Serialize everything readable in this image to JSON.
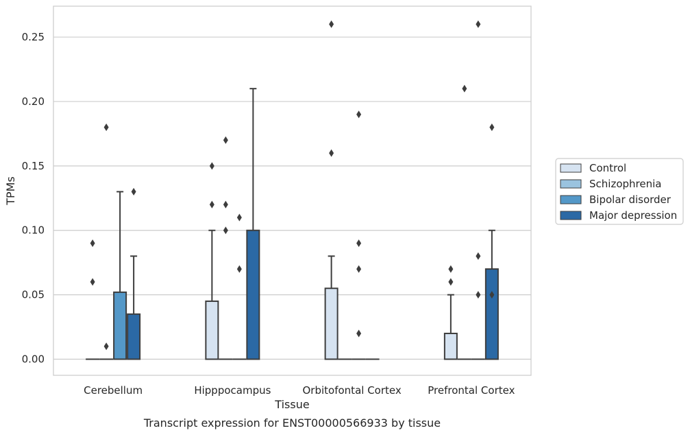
{
  "chart_data": {
    "type": "box",
    "xlabel": "Tissue",
    "ylabel": "TPMs",
    "caption": "Transcript expression for ENST00000566933 by tissue",
    "ylim": [
      -0.0125,
      0.274
    ],
    "yticks": [
      0.0,
      0.05,
      0.1,
      0.15,
      0.2,
      0.25
    ],
    "ytick_labels": [
      "0.00",
      "0.05",
      "0.10",
      "0.15",
      "0.20",
      "0.25"
    ],
    "grid": "horizontal",
    "legend_position": "right",
    "categories": [
      "Cerebellum",
      "Hipppocampus",
      "Orbitofontal Cortex",
      "Prefrontal Cortex"
    ],
    "series": [
      {
        "name": "Control",
        "color": "#d6e3f1",
        "boxes": [
          {
            "q1": 0,
            "median": 0,
            "q3": 0,
            "whisker_low": 0,
            "whisker_high": 0,
            "outliers": [
              0.06,
              0.09
            ]
          },
          {
            "q1": 0,
            "median": 0,
            "q3": 0.045,
            "whisker_low": 0,
            "whisker_high": 0.1,
            "outliers": [
              0.12,
              0.15
            ]
          },
          {
            "q1": 0,
            "median": 0,
            "q3": 0.055,
            "whisker_low": 0,
            "whisker_high": 0.08,
            "outliers": [
              0.16,
              0.26
            ]
          },
          {
            "q1": 0,
            "median": 0,
            "q3": 0.02,
            "whisker_low": 0,
            "whisker_high": 0.05,
            "outliers": [
              0.06,
              0.07
            ]
          }
        ]
      },
      {
        "name": "Schizophrenia",
        "color": "#9ac3df",
        "boxes": [
          {
            "q1": 0,
            "median": 0,
            "q3": 0,
            "whisker_low": 0,
            "whisker_high": 0,
            "outliers": [
              0.01,
              0.18
            ]
          },
          {
            "q1": 0,
            "median": 0,
            "q3": 0,
            "whisker_low": 0,
            "whisker_high": 0,
            "outliers": [
              0.1,
              0.12,
              0.17
            ]
          },
          {
            "q1": 0,
            "median": 0,
            "q3": 0,
            "whisker_low": 0,
            "whisker_high": 0,
            "outliers": []
          },
          {
            "q1": 0,
            "median": 0,
            "q3": 0,
            "whisker_low": 0,
            "whisker_high": 0,
            "outliers": [
              0.21
            ]
          }
        ]
      },
      {
        "name": "Bipolar disorder",
        "color": "#5498c8",
        "boxes": [
          {
            "q1": 0,
            "median": 0,
            "q3": 0.052,
            "whisker_low": 0,
            "whisker_high": 0.13,
            "outliers": []
          },
          {
            "q1": 0,
            "median": 0,
            "q3": 0,
            "whisker_low": 0,
            "whisker_high": 0,
            "outliers": [
              0.07,
              0.11
            ]
          },
          {
            "q1": 0,
            "median": 0,
            "q3": 0,
            "whisker_low": 0,
            "whisker_high": 0,
            "outliers": [
              0.02,
              0.07,
              0.09,
              0.19
            ]
          },
          {
            "q1": 0,
            "median": 0,
            "q3": 0,
            "whisker_low": 0,
            "whisker_high": 0,
            "outliers": [
              0.05,
              0.08,
              0.26
            ]
          }
        ]
      },
      {
        "name": "Major depression",
        "color": "#2b69a5",
        "boxes": [
          {
            "q1": 0,
            "median": 0,
            "q3": 0.035,
            "whisker_low": 0,
            "whisker_high": 0.08,
            "outliers": [
              0.13
            ]
          },
          {
            "q1": 0,
            "median": 0,
            "q3": 0.1,
            "whisker_low": 0,
            "whisker_high": 0.21,
            "outliers": []
          },
          {
            "q1": 0,
            "median": 0,
            "q3": 0,
            "whisker_low": 0,
            "whisker_high": 0,
            "outliers": []
          },
          {
            "q1": 0,
            "median": 0,
            "q3": 0.07,
            "whisker_low": 0,
            "whisker_high": 0.1,
            "outliers": [
              0.05,
              0.18
            ]
          }
        ]
      }
    ]
  }
}
